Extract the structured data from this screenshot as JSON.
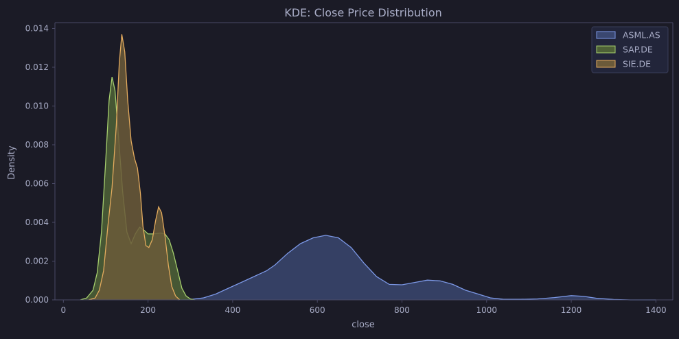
{
  "colors": {
    "background": "#1b1b26",
    "plot_background": "#1b1b26",
    "axis": "#4a4a66",
    "text": "#a9adc7",
    "legend_bg": "#22253a",
    "legend_border": "#3a3e5a"
  },
  "chart_data": {
    "type": "area",
    "title": "KDE: Close Price Distribution",
    "xlabel": "close",
    "ylabel": "Density",
    "xlim": [
      -20,
      1440
    ],
    "ylim": [
      0,
      0.0143
    ],
    "xticks": [
      0,
      200,
      400,
      600,
      800,
      1000,
      1200,
      1400
    ],
    "yticks": [
      0.0,
      0.002,
      0.004,
      0.006,
      0.008,
      0.01,
      0.012,
      0.014
    ],
    "ytick_labels": [
      "0.000",
      "0.002",
      "0.004",
      "0.006",
      "0.008",
      "0.010",
      "0.012",
      "0.014"
    ],
    "grid": false,
    "legend": "top-right",
    "series": [
      {
        "name": "ASML.AS",
        "color": "#7c98e6",
        "fill": "#3a4770",
        "points": [
          [
            270,
            0
          ],
          [
            300,
            2e-05
          ],
          [
            330,
            0.0001
          ],
          [
            360,
            0.0003
          ],
          [
            390,
            0.0006
          ],
          [
            420,
            0.0009
          ],
          [
            450,
            0.0012
          ],
          [
            480,
            0.0015
          ],
          [
            500,
            0.0018
          ],
          [
            530,
            0.0024
          ],
          [
            560,
            0.0029
          ],
          [
            590,
            0.0032
          ],
          [
            620,
            0.00333
          ],
          [
            650,
            0.0032
          ],
          [
            680,
            0.0027
          ],
          [
            710,
            0.0019
          ],
          [
            740,
            0.0012
          ],
          [
            770,
            0.0008
          ],
          [
            800,
            0.00078
          ],
          [
            830,
            0.0009
          ],
          [
            860,
            0.00102
          ],
          [
            890,
            0.00098
          ],
          [
            920,
            0.0008
          ],
          [
            950,
            0.0005
          ],
          [
            980,
            0.0003
          ],
          [
            1010,
            0.0001
          ],
          [
            1040,
            3e-05
          ],
          [
            1080,
            3e-05
          ],
          [
            1120,
            5e-05
          ],
          [
            1160,
            0.00012
          ],
          [
            1200,
            0.00022
          ],
          [
            1230,
            0.00018
          ],
          [
            1260,
            8e-05
          ],
          [
            1300,
            2e-05
          ],
          [
            1340,
            0
          ],
          [
            1400,
            0
          ]
        ]
      },
      {
        "name": "SAP.DE",
        "color": "#a6cf6e",
        "fill": "#4e6137",
        "points": [
          [
            40,
            0
          ],
          [
            55,
            0.0001
          ],
          [
            70,
            0.0005
          ],
          [
            80,
            0.0014
          ],
          [
            90,
            0.0035
          ],
          [
            100,
            0.0072
          ],
          [
            108,
            0.0103
          ],
          [
            115,
            0.0115
          ],
          [
            122,
            0.0108
          ],
          [
            130,
            0.0085
          ],
          [
            140,
            0.0056
          ],
          [
            150,
            0.0035
          ],
          [
            160,
            0.0029
          ],
          [
            170,
            0.0034
          ],
          [
            180,
            0.00375
          ],
          [
            190,
            0.0036
          ],
          [
            200,
            0.0034
          ],
          [
            210,
            0.0034
          ],
          [
            220,
            0.00342
          ],
          [
            230,
            0.00345
          ],
          [
            240,
            0.0034
          ],
          [
            250,
            0.0031
          ],
          [
            260,
            0.0024
          ],
          [
            270,
            0.0015
          ],
          [
            280,
            0.0006
          ],
          [
            290,
            0.0002
          ],
          [
            300,
            5e-05
          ],
          [
            310,
            0
          ]
        ]
      },
      {
        "name": "SIE.DE",
        "color": "#e4ab5e",
        "fill": "#6b5a3a",
        "points": [
          [
            60,
            0
          ],
          [
            75,
            0.0001
          ],
          [
            85,
            0.0005
          ],
          [
            95,
            0.0015
          ],
          [
            105,
            0.0038
          ],
          [
            115,
            0.0058
          ],
          [
            125,
            0.009
          ],
          [
            132,
            0.0122
          ],
          [
            138,
            0.0137
          ],
          [
            145,
            0.0128
          ],
          [
            152,
            0.0103
          ],
          [
            160,
            0.0082
          ],
          [
            168,
            0.0073
          ],
          [
            175,
            0.0068
          ],
          [
            182,
            0.0055
          ],
          [
            188,
            0.0038
          ],
          [
            195,
            0.0028
          ],
          [
            202,
            0.0027
          ],
          [
            210,
            0.0031
          ],
          [
            218,
            0.0041
          ],
          [
            225,
            0.0048
          ],
          [
            232,
            0.0045
          ],
          [
            240,
            0.0033
          ],
          [
            248,
            0.0018
          ],
          [
            256,
            0.0007
          ],
          [
            265,
            0.0002
          ],
          [
            275,
            0
          ]
        ]
      }
    ]
  }
}
